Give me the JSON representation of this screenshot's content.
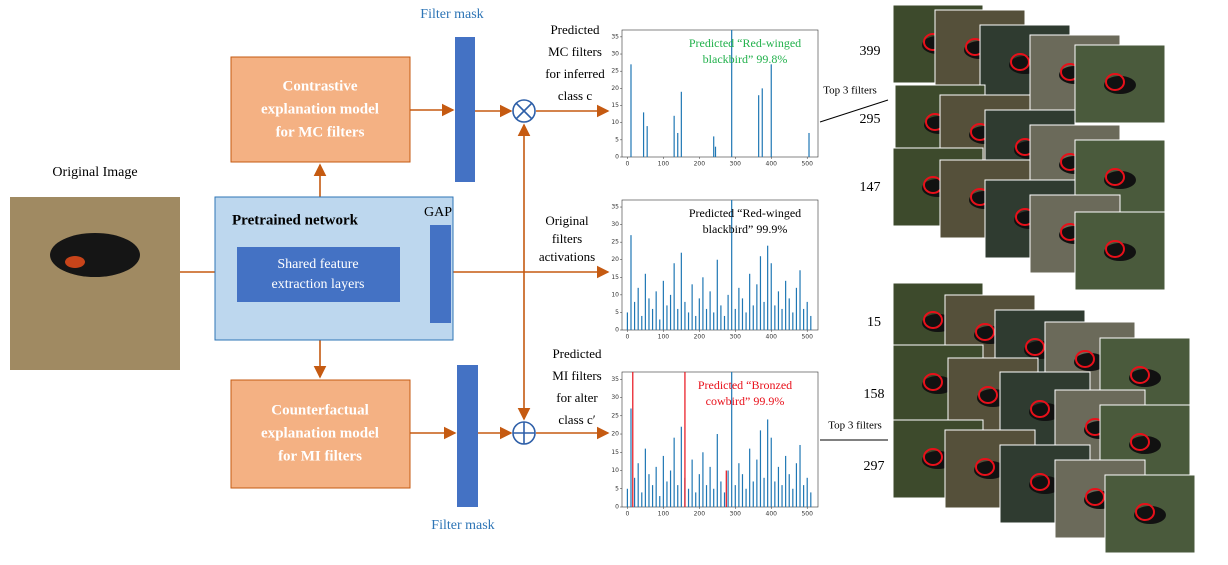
{
  "original_image": {
    "label": "Original Image"
  },
  "pretrained": {
    "title": "Pretrained network",
    "gap": "GAP",
    "shared": [
      "Shared feature",
      "extraction layers"
    ]
  },
  "contrastive": {
    "lines": [
      "Contrastive",
      "explanation model",
      "for MC filters"
    ]
  },
  "counterfactual": {
    "lines": [
      "Counterfactual",
      "explanation model",
      "for MI filters"
    ]
  },
  "filter_mask_top": "Filter mask",
  "filter_mask_bottom": "Filter mask",
  "mc_label": [
    "Predicted",
    "MC filters",
    "for inferred",
    "class c"
  ],
  "orig_label": [
    "Original",
    "filters",
    "activations"
  ],
  "mi_label": [
    "Predicted",
    "MI filters",
    "for alter",
    "class c′"
  ],
  "top3_top": "Top 3 filters",
  "top3_bottom": "Top 3 filters",
  "filters_top": [
    "399",
    "295",
    "147"
  ],
  "filters_bottom": [
    "15",
    "158",
    "297"
  ],
  "charts": [
    {
      "type": "bar",
      "annotation": [
        "Predicted “Red-winged",
        "blackbird” 99.8%"
      ],
      "annotation_color": "#22b14c",
      "xlim": [
        -15,
        530
      ],
      "ylim": [
        0,
        37
      ],
      "xticks": [
        0,
        100,
        200,
        300,
        400,
        500
      ],
      "yticks": [
        0,
        5,
        10,
        15,
        20,
        25,
        30,
        35
      ],
      "series": [
        {
          "color": "#1f77b4",
          "x": [
            10,
            45,
            55,
            130,
            140,
            150,
            240,
            245,
            290,
            365,
            375,
            400,
            505
          ],
          "values": [
            27,
            13,
            9,
            12,
            7,
            19,
            6,
            3,
            37,
            18,
            20,
            27,
            7
          ]
        }
      ]
    },
    {
      "type": "bar",
      "annotation": [
        "Predicted “Red-winged",
        "blackbird” 99.9%"
      ],
      "annotation_color": "#000000",
      "xlim": [
        -15,
        530
      ],
      "ylim": [
        0,
        37
      ],
      "xticks": [
        0,
        100,
        200,
        300,
        400,
        500
      ],
      "yticks": [
        0,
        5,
        10,
        15,
        20,
        25,
        30,
        35
      ],
      "series": [
        {
          "color": "#1f77b4",
          "x": [
            0,
            10,
            20,
            30,
            40,
            50,
            60,
            70,
            80,
            90,
            100,
            110,
            120,
            130,
            140,
            150,
            160,
            170,
            180,
            190,
            200,
            210,
            220,
            230,
            240,
            250,
            260,
            270,
            280,
            290,
            300,
            310,
            320,
            330,
            340,
            350,
            360,
            370,
            380,
            390,
            400,
            410,
            420,
            430,
            440,
            450,
            460,
            470,
            480,
            490,
            500,
            510
          ],
          "values": [
            5,
            27,
            8,
            12,
            4,
            16,
            9,
            6,
            11,
            3,
            14,
            7,
            10,
            19,
            6,
            22,
            8,
            5,
            13,
            4,
            9,
            15,
            6,
            11,
            5,
            20,
            7,
            4,
            10,
            37,
            6,
            12,
            9,
            5,
            16,
            7,
            13,
            21,
            8,
            24,
            19,
            7,
            11,
            6,
            14,
            9,
            5,
            12,
            17,
            6,
            8,
            4
          ]
        }
      ]
    },
    {
      "type": "bar",
      "annotation": [
        "Predicted “Bronzed",
        "cowbird” 99.9%"
      ],
      "annotation_color": "#e8101a",
      "xlim": [
        -15,
        530
      ],
      "ylim": [
        0,
        37
      ],
      "xticks": [
        0,
        100,
        200,
        300,
        400,
        500
      ],
      "yticks": [
        0,
        5,
        10,
        15,
        20,
        25,
        30,
        35
      ],
      "series": [
        {
          "color": "#1f77b4",
          "x": [
            0,
            10,
            20,
            30,
            40,
            50,
            60,
            70,
            80,
            90,
            100,
            110,
            120,
            130,
            140,
            150,
            160,
            170,
            180,
            190,
            200,
            210,
            220,
            230,
            240,
            250,
            260,
            270,
            280,
            290,
            300,
            310,
            320,
            330,
            340,
            350,
            360,
            370,
            380,
            390,
            400,
            410,
            420,
            430,
            440,
            450,
            460,
            470,
            480,
            490,
            500,
            510
          ],
          "values": [
            5,
            27,
            8,
            12,
            4,
            16,
            9,
            6,
            11,
            3,
            14,
            7,
            10,
            19,
            6,
            22,
            8,
            5,
            13,
            4,
            9,
            15,
            6,
            11,
            5,
            20,
            7,
            4,
            10,
            37,
            6,
            12,
            9,
            5,
            16,
            7,
            13,
            21,
            8,
            24,
            19,
            7,
            11,
            6,
            14,
            9,
            5,
            12,
            17,
            6,
            8,
            4
          ]
        },
        {
          "color": "#e8101a",
          "x": [
            15,
            160,
            275
          ],
          "values": [
            37,
            37,
            10
          ]
        }
      ]
    }
  ]
}
